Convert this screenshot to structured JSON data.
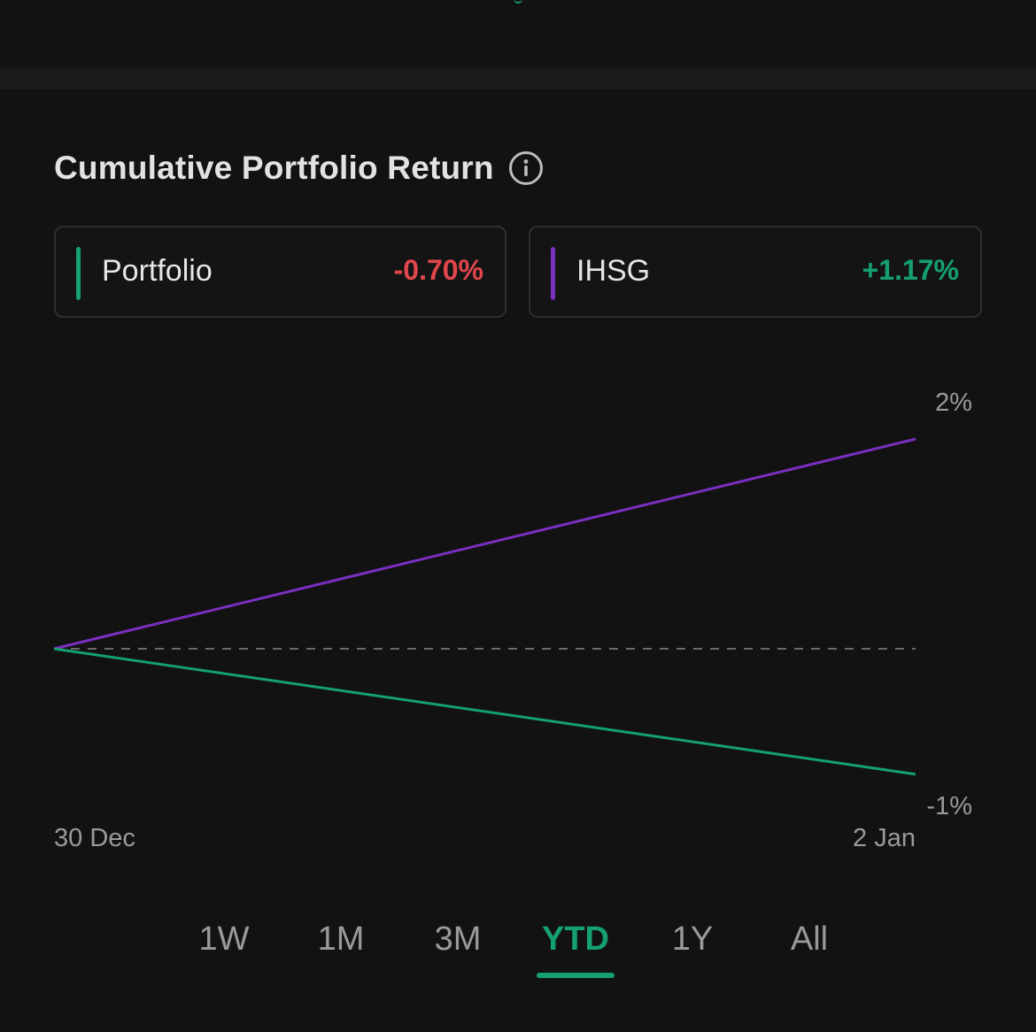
{
  "header": {
    "title": "Cumulative Portfolio Return",
    "info_icon": "info-icon"
  },
  "legend": [
    {
      "name": "Portfolio",
      "value": "-0.70%",
      "bar_color": "#14a06f",
      "value_color": "#e0474c"
    },
    {
      "name": "IHSG",
      "value": "+1.17%",
      "bar_color": "#7b2fc0",
      "value_color": "#14a06f"
    }
  ],
  "chart_data": {
    "type": "line",
    "x": [
      "30 Dec",
      "2 Jan"
    ],
    "x_tick_labels": [
      "30 Dec",
      "2 Jan"
    ],
    "y_tick_labels": [
      "2%",
      "-1%"
    ],
    "baseline": 0,
    "baseline_style": "dashed",
    "ylim": [
      -1,
      2
    ],
    "series": [
      {
        "name": "IHSG",
        "color": "#7b2fc0",
        "values": [
          0,
          1.17
        ]
      },
      {
        "name": "Portfolio",
        "color": "#14a06f",
        "values": [
          0,
          -0.7
        ]
      }
    ]
  },
  "tabs": {
    "items": [
      "1W",
      "1M",
      "3M",
      "YTD",
      "1Y",
      "All"
    ],
    "active_index": 3
  },
  "colors": {
    "background": "#121212",
    "accent_green": "#14a06f",
    "negative_red": "#e0474c",
    "purple": "#7b2fc0"
  }
}
